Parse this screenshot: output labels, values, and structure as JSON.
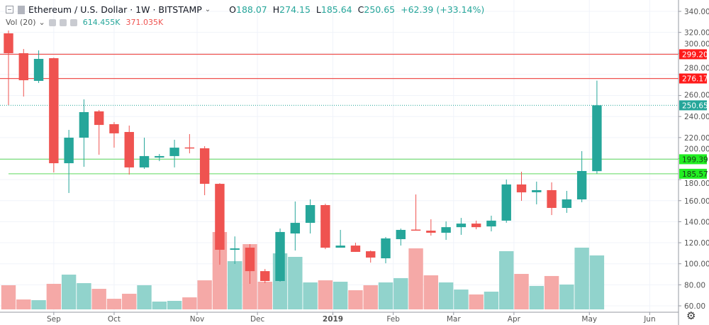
{
  "header": {
    "title": "Ethereum / U.S. Dollar · 1W · BITSTAMP",
    "ohlc": [
      {
        "key": "O",
        "value": "188.07"
      },
      {
        "key": "H",
        "value": "274.15"
      },
      {
        "key": "L",
        "value": "185.64"
      },
      {
        "key": "C",
        "value": "250.65"
      }
    ],
    "change": "+62.39 (+33.14%)"
  },
  "volume_legend": {
    "label": "Vol (20)",
    "value_up": "614.455K",
    "value_down": "371.035K"
  },
  "colors": {
    "up": "#26a69a",
    "down": "#ef5350",
    "volume_up": "#91d3cc",
    "volume_down": "#f5a9a7",
    "resistance_line": "#ef5350",
    "support_line": "#7ee07e",
    "last_price": "#26a69a"
  },
  "icons": [
    "collapse-icon",
    "symbol-logo-icon",
    "chevron-down-icon",
    "eye-icon",
    "settings-icon",
    "close-icon",
    "gear-icon"
  ],
  "chart_data": {
    "type": "candlestick",
    "interval": "1W",
    "y_axis": {
      "min": 60,
      "max": 340,
      "ticks": [
        "60.00",
        "80.00",
        "100.00",
        "120.00",
        "140.00",
        "160.00",
        "180.00",
        "200.00",
        "220.00",
        "240.00",
        "260.00",
        "280.00",
        "300.00",
        "320.00",
        "340.00"
      ],
      "position": "right"
    },
    "x_axis": {
      "tick_labels": [
        {
          "label": "Sep",
          "bar": 3
        },
        {
          "label": "Oct",
          "bar": 7
        },
        {
          "label": "Nov",
          "bar": 12.5
        },
        {
          "label": "Dec",
          "bar": 16.5
        },
        {
          "label": "2019",
          "bar": 21.5
        },
        {
          "label": "Feb",
          "bar": 25.5
        },
        {
          "label": "Mar",
          "bar": 29.5
        },
        {
          "label": "Apr",
          "bar": 33.5
        },
        {
          "label": "May",
          "bar": 38.5
        },
        {
          "label": "Jun",
          "bar": 42.5
        }
      ]
    },
    "grid": true,
    "candles": [
      [
        319.1,
        321.8,
        250.9,
        300.2
      ],
      [
        300.2,
        304.2,
        259.0,
        274.5
      ],
      [
        273.9,
        302.9,
        271.9,
        294.8
      ],
      [
        295.5,
        296.0,
        186.8,
        195.6
      ],
      [
        195.6,
        227.3,
        167.3,
        219.9
      ],
      [
        219.9,
        256.3,
        192.2,
        244.2
      ],
      [
        244.9,
        246.2,
        203.7,
        232.0
      ],
      [
        232.7,
        234.7,
        210.4,
        224.0
      ],
      [
        225.3,
        231.4,
        184.8,
        191.6
      ],
      [
        191.6,
        219.9,
        190.2,
        202.4
      ],
      [
        201.0,
        204.4,
        197.6,
        202.4
      ],
      [
        202.4,
        217.9,
        191.6,
        210.4
      ],
      [
        210.6,
        223.3,
        205.0,
        209.8
      ],
      [
        209.8,
        211.8,
        165.2,
        176.0
      ],
      [
        176.0,
        176.6,
        99.1,
        113.3
      ],
      [
        113.3,
        126.0,
        99.8,
        114.6
      ],
      [
        115.3,
        118.7,
        80.9,
        93.0
      ],
      [
        93.0,
        95.0,
        81.6,
        83.6
      ],
      [
        83.6,
        133.5,
        83.0,
        130.2
      ],
      [
        128.8,
        159.2,
        112.6,
        138.9
      ],
      [
        138.9,
        161.2,
        128.8,
        155.8
      ],
      [
        155.8,
        157.1,
        113.9,
        115.3
      ],
      [
        115.3,
        132.2,
        115.3,
        117.3
      ],
      [
        117.3,
        120.0,
        111.3,
        111.3
      ],
      [
        111.9,
        112.6,
        101.1,
        105.9
      ],
      [
        105.2,
        125.4,
        100.5,
        124.1
      ],
      [
        123.4,
        133.5,
        117.3,
        132.2
      ],
      [
        132.5,
        165.9,
        131.5,
        131.9
      ],
      [
        131.5,
        142.3,
        126.8,
        129.5
      ],
      [
        129.5,
        140.3,
        122.7,
        134.8
      ],
      [
        134.8,
        143.6,
        127.5,
        138.2
      ],
      [
        138.2,
        141.0,
        132.8,
        134.8
      ],
      [
        135.5,
        145.7,
        130.8,
        141.0
      ],
      [
        141.0,
        180.1,
        139.0,
        175.4
      ],
      [
        175.4,
        187.5,
        159.8,
        167.9
      ],
      [
        168.0,
        178.1,
        156.5,
        170.0
      ],
      [
        170.0,
        177.4,
        146.3,
        153.1
      ],
      [
        153.1,
        169.3,
        148.4,
        161.2
      ],
      [
        161.2,
        207.1,
        158.5,
        188.2
      ],
      [
        188.07,
        274.15,
        185.64,
        250.65
      ]
    ],
    "candle_fields": [
      "open",
      "high",
      "low",
      "close"
    ],
    "volume_k": [
      275,
      113,
      105,
      291,
      396,
      299,
      234,
      121,
      178,
      275,
      89,
      97,
      137,
      331,
      881,
      549,
      743,
      315,
      638,
      598,
      307,
      331,
      315,
      218,
      275,
      307,
      356,
      695,
      388,
      307,
      226,
      170,
      202,
      663,
      404,
      267,
      380,
      283,
      703,
      614.455
    ],
    "price_lines": [
      {
        "value": 299.2,
        "label": "299.20",
        "kind": "resistance"
      },
      {
        "value": 276.17,
        "label": "276.17",
        "kind": "resistance"
      },
      {
        "value": 250.65,
        "label": "250.65",
        "kind": "last_price"
      },
      {
        "value": 199.39,
        "label": "199.39",
        "kind": "support"
      },
      {
        "value": 185.57,
        "label": "185.57",
        "kind": "support"
      }
    ]
  }
}
